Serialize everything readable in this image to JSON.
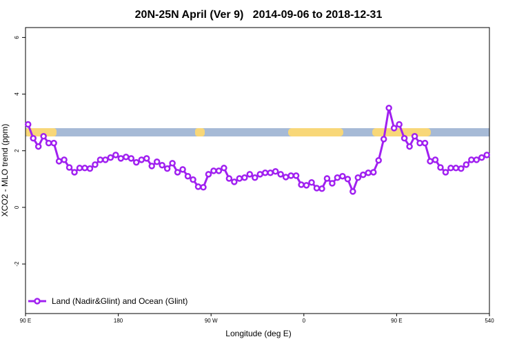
{
  "chart_data": {
    "type": "line",
    "title": "20N-25N April (Ver 9)   2014-09-06 to 2018-12-31",
    "x_label": "Longitude (deg E)",
    "y_label": "XCO2 - MLO trend (ppm)",
    "x": [
      92.5,
      97.5,
      102.5,
      107.5,
      112.5,
      117.5,
      122.5,
      127.5,
      132.5,
      137.5,
      142.5,
      147.5,
      152.5,
      157.5,
      162.5,
      167.5,
      172.5,
      177.5,
      182.5,
      187.5,
      192.5,
      197.5,
      202.5,
      207.5,
      212.5,
      217.5,
      222.5,
      227.5,
      232.5,
      237.5,
      242.5,
      247.5,
      252.5,
      257.5,
      262.5,
      267.5,
      272.5,
      277.5,
      282.5,
      287.5,
      292.5,
      297.5,
      302.5,
      307.5,
      312.5,
      317.5,
      322.5,
      327.5,
      332.5,
      337.5,
      342.5,
      347.5,
      352.5,
      357.5,
      362.5,
      367.5,
      372.5,
      377.5,
      382.5,
      387.5,
      392.5,
      397.5,
      402.5,
      407.5,
      412.5,
      417.5,
      422.5,
      427.5,
      432.5,
      437.5,
      442.5,
      447.5,
      452.5,
      457.5,
      462.5,
      467.5,
      472.5,
      477.5,
      482.5,
      487.5,
      492.5,
      497.5,
      502.5,
      507.5,
      512.5,
      517.5,
      522.5,
      527.5,
      532.5,
      537.5
    ],
    "series": [
      {
        "name": "Land (Nadir&Glint) and Ocean (Glint)",
        "color": "#a020f0",
        "values": [
          2.93,
          2.44,
          2.15,
          2.51,
          2.27,
          2.27,
          1.63,
          1.68,
          1.41,
          1.24,
          1.39,
          1.39,
          1.37,
          1.51,
          1.68,
          1.68,
          1.76,
          1.85,
          1.73,
          1.78,
          1.73,
          1.59,
          1.68,
          1.73,
          1.46,
          1.61,
          1.49,
          1.37,
          1.56,
          1.24,
          1.34,
          1.1,
          0.98,
          0.73,
          0.71,
          1.17,
          1.29,
          1.29,
          1.39,
          1.02,
          0.9,
          1.02,
          1.05,
          1.17,
          1.05,
          1.17,
          1.22,
          1.22,
          1.27,
          1.17,
          1.07,
          1.12,
          1.12,
          0.8,
          0.78,
          0.88,
          0.68,
          0.66,
          1.02,
          0.85,
          1.05,
          1.1,
          1.0,
          0.56,
          1.05,
          1.15,
          1.22,
          1.24,
          1.66,
          2.41,
          3.51,
          2.8,
          2.93,
          2.44,
          2.15,
          2.51,
          2.27,
          2.27,
          1.63,
          1.68,
          1.41,
          1.24,
          1.39,
          1.39,
          1.37,
          1.51,
          1.68,
          1.68,
          1.76,
          1.85
        ]
      }
    ],
    "xlim": [
      90,
      540
    ],
    "xticks": [
      {
        "value": 90,
        "label": "90 E"
      },
      180,
      {
        "value": 270,
        "label": "90 W"
      },
      {
        "value": 360,
        "label": "0"
      },
      {
        "value": 450,
        "label": "90 E"
      },
      540
    ],
    "ylim": [
      -3.75,
      6.35
    ],
    "yticks": [
      -2,
      0,
      2,
      4,
      6
    ],
    "legend": "bottom left"
  }
}
